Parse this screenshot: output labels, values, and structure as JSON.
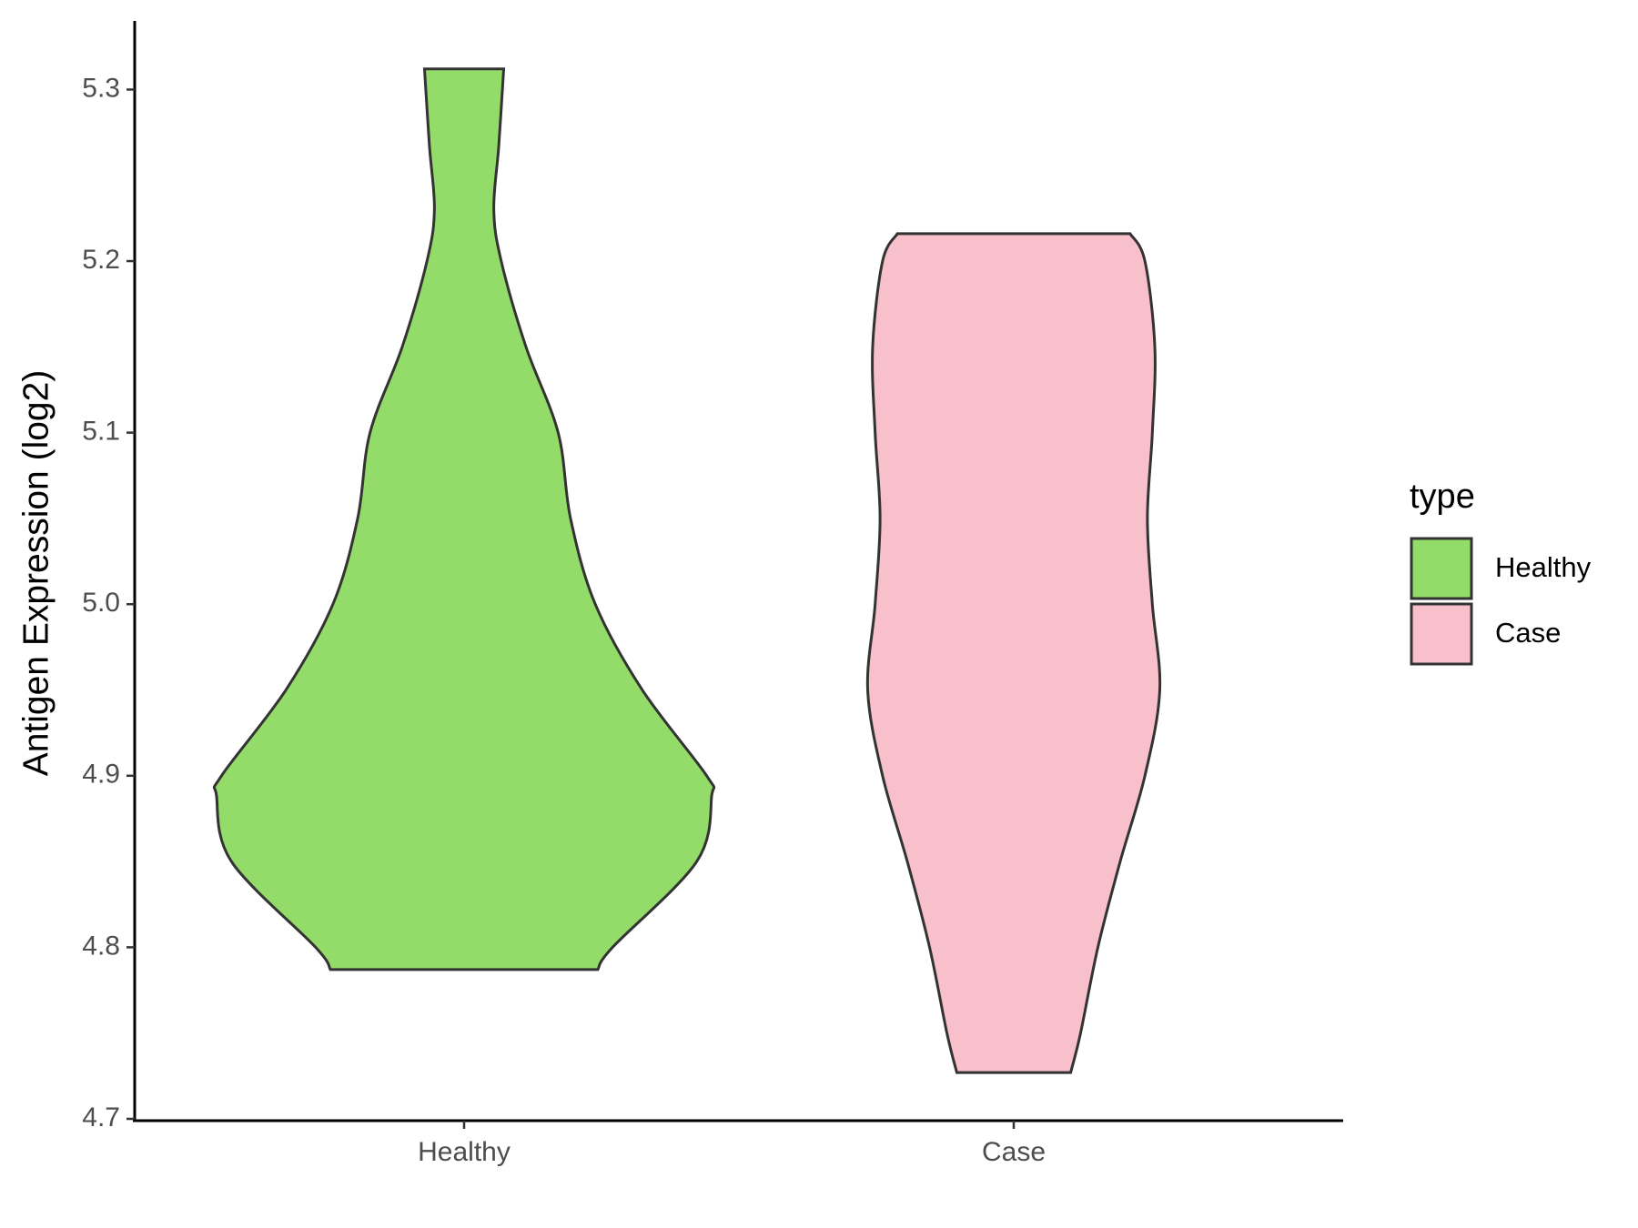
{
  "chart_data": {
    "type": "violin",
    "y_label": "Antigen Expression (log2)",
    "categories": [
      "Healthy",
      "Case"
    ],
    "legend_title": "type",
    "legend_position": "right",
    "series": [
      {
        "name": "Healthy",
        "color": "#93dc6a",
        "values": [
          4.787,
          4.8,
          4.85,
          4.888,
          4.9,
          4.95,
          5.0,
          5.05,
          5.1,
          5.15,
          5.2,
          5.23,
          5.267,
          5.312
        ],
        "widths": [
          0.54,
          0.6,
          0.94,
          1.0,
          0.98,
          0.72,
          0.53,
          0.43,
          0.38,
          0.25,
          0.15,
          0.12,
          0.14,
          0.16
        ]
      },
      {
        "name": "Case",
        "color": "#f7c0cb",
        "values": [
          4.727,
          4.75,
          4.8,
          4.85,
          4.9,
          4.95,
          5.0,
          5.05,
          5.1,
          5.15,
          5.2,
          5.216
        ],
        "widths": [
          0.23,
          0.27,
          0.34,
          0.43,
          0.53,
          0.59,
          0.56,
          0.54,
          0.56,
          0.57,
          0.53,
          0.47
        ]
      }
    ],
    "ylim": [
      4.7,
      5.34
    ],
    "yticks": [
      {
        "value": 4.7,
        "label": "4.7"
      },
      {
        "value": 4.8,
        "label": "4.8"
      },
      {
        "value": 4.9,
        "label": "4.9"
      },
      {
        "value": 5.0,
        "label": "5.0"
      },
      {
        "value": 5.1,
        "label": "5.1"
      },
      {
        "value": 5.2,
        "label": "5.2"
      },
      {
        "value": 5.3,
        "label": "5.3"
      }
    ],
    "grid": false
  }
}
